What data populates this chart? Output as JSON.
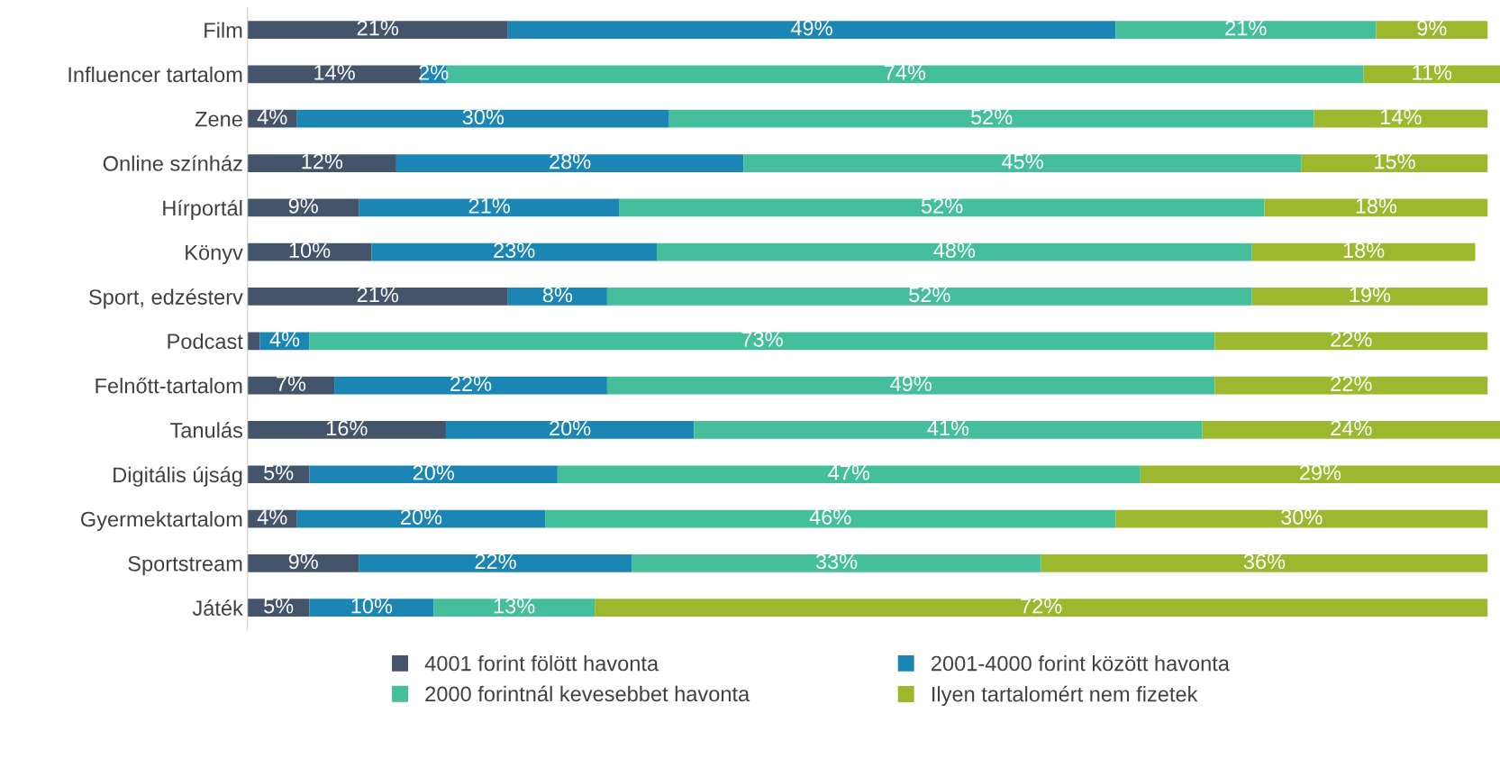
{
  "chart_data": {
    "type": "bar",
    "orientation": "horizontal",
    "stacked": true,
    "categories": [
      "Film",
      "Influencer tartalom",
      "Zene",
      "Online színház",
      "Hírportál",
      "Könyv",
      "Sport, edzésterv",
      "Podcast",
      "Felnőtt-tartalom",
      "Tanulás",
      "Digitális újság",
      "Gyermektartalom",
      "Sportstream",
      "Játék"
    ],
    "series": [
      {
        "name": "4001 forint fölött havonta",
        "color": "#44546a",
        "values": [
          21,
          14,
          4,
          12,
          9,
          10,
          21,
          1,
          7,
          16,
          5,
          4,
          9,
          5
        ],
        "value_labels": [
          "21%",
          "14%",
          "4%",
          "12%",
          "9%",
          "10%",
          "21%",
          null,
          "7%",
          "16%",
          "5%",
          "4%",
          "9%",
          "5%"
        ]
      },
      {
        "name": "2001-4000 forint között havonta",
        "color": "#1b86b4",
        "values": [
          49,
          2,
          30,
          28,
          21,
          23,
          8,
          4,
          22,
          20,
          20,
          20,
          22,
          10
        ],
        "value_labels": [
          "49%",
          "2%",
          "30%",
          "28%",
          "21%",
          "23%",
          "8%",
          "4%",
          "22%",
          "20%",
          "20%",
          "20%",
          "22%",
          "10%"
        ]
      },
      {
        "name": "2000 forintnál kevesebbet havonta",
        "color": "#45bf9b",
        "values": [
          21,
          74,
          52,
          45,
          52,
          48,
          52,
          73,
          49,
          41,
          47,
          46,
          33,
          13
        ],
        "value_labels": [
          "21%",
          "74%",
          "52%",
          "45%",
          "52%",
          "48%",
          "52%",
          "73%",
          "49%",
          "41%",
          "47%",
          "46%",
          "33%",
          "13%"
        ]
      },
      {
        "name": "Ilyen tartalomért nem fizetek",
        "color": "#9cb82f",
        "values": [
          9,
          11,
          14,
          15,
          18,
          18,
          19,
          22,
          22,
          24,
          29,
          30,
          36,
          72
        ],
        "value_labels": [
          "9%",
          "11%",
          "14%",
          "15%",
          "18%",
          "18%",
          "19%",
          "22%",
          "22%",
          "24%",
          "29%",
          "30%",
          "36%",
          "72%"
        ]
      }
    ],
    "xlim": [
      0,
      101
    ],
    "tick_labels": "y",
    "grid": false,
    "legend": "bottom"
  }
}
